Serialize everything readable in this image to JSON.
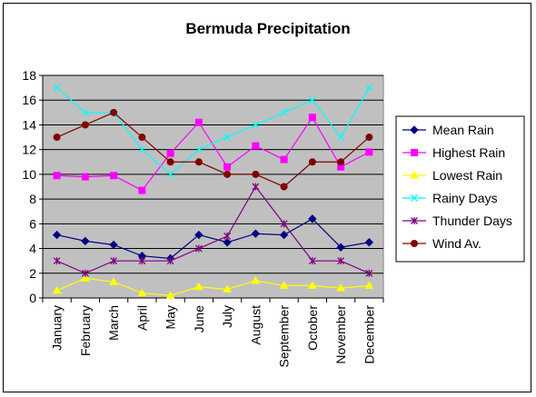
{
  "chart_data": {
    "type": "line",
    "title": "Bermuda Precipitation",
    "xlabel": "",
    "ylabel": "",
    "ylim": [
      0,
      18
    ],
    "yticks": [
      0,
      2,
      4,
      6,
      8,
      10,
      12,
      14,
      16,
      18
    ],
    "grid": true,
    "legend_position": "right",
    "plot_background": "#C0C0C0",
    "categories": [
      "January",
      "February",
      "March",
      "April",
      "May",
      "June",
      "July",
      "August",
      "September",
      "October",
      "November",
      "December"
    ],
    "series": [
      {
        "name": "Mean Rain",
        "color": "#000080",
        "marker": "diamond",
        "values": [
          5.1,
          4.6,
          4.3,
          3.4,
          3.2,
          5.1,
          4.5,
          5.2,
          5.1,
          6.4,
          4.1,
          4.5
        ]
      },
      {
        "name": "Highest Rain",
        "color": "#FF00FF",
        "marker": "square",
        "values": [
          9.9,
          9.8,
          9.9,
          8.7,
          11.7,
          14.2,
          10.6,
          12.3,
          11.2,
          14.6,
          10.6,
          11.8
        ]
      },
      {
        "name": "Lowest Rain",
        "color": "#FFFF00",
        "marker": "triangle",
        "values": [
          0.6,
          1.6,
          1.3,
          0.4,
          0.2,
          0.9,
          0.7,
          1.4,
          1.0,
          1.0,
          0.8,
          1.0
        ]
      },
      {
        "name": "Rainy Days",
        "color": "#00FFFF",
        "marker": "x",
        "values": [
          17,
          15,
          15,
          12,
          10,
          12,
          13,
          14,
          15,
          16,
          13,
          17
        ]
      },
      {
        "name": "Thunder Days",
        "color": "#800080",
        "marker": "star",
        "values": [
          3,
          2,
          3,
          3,
          3,
          4,
          5,
          9,
          6,
          3,
          3,
          2
        ]
      },
      {
        "name": "Wind Av.",
        "color": "#800000",
        "marker": "circle",
        "values": [
          13,
          14,
          15,
          13,
          11,
          11,
          10,
          10,
          9,
          11,
          11,
          13
        ]
      }
    ]
  }
}
